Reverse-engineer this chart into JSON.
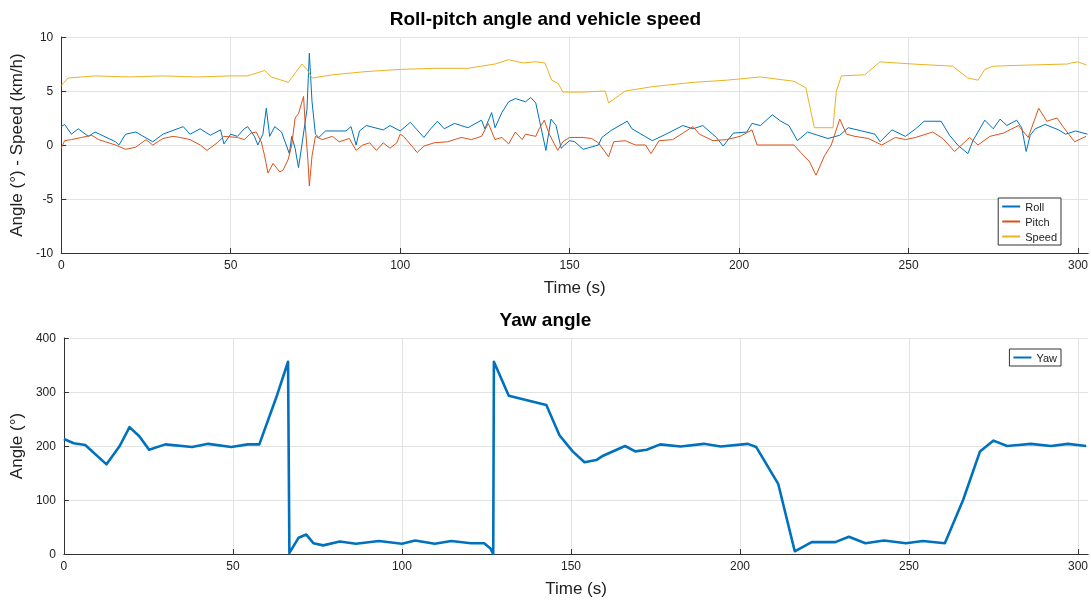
{
  "chart_data": [
    {
      "type": "line",
      "title": "Roll-pitch angle and vehicle speed",
      "xlabel": "Time (s)",
      "ylabel": "Angle (°) - Speed (km/h)",
      "xlim": [
        0,
        303
      ],
      "xticks": [
        0,
        50,
        100,
        150,
        200,
        250,
        300
      ],
      "ylim": [
        -10,
        10
      ],
      "yticks": [
        -10,
        -5,
        0,
        5,
        10
      ],
      "grid": true,
      "legend": "bottom right",
      "marker": "none",
      "series": [
        {
          "name": "Roll",
          "color": "#0072bd",
          "x": [
            0,
            1,
            3,
            5,
            8,
            10,
            16,
            17,
            19,
            22,
            27,
            30,
            36,
            38,
            41,
            44,
            47,
            48,
            50,
            52,
            54,
            55,
            57,
            58,
            59.5,
            60.5,
            61.5,
            63,
            65,
            67.3,
            68,
            69,
            70,
            71,
            72.5,
            73.2,
            74,
            75,
            76,
            78,
            84,
            85.5,
            87,
            88,
            90,
            95,
            97,
            100,
            103,
            105,
            107,
            109,
            111,
            113,
            116,
            120,
            124,
            125,
            127,
            128,
            130,
            132,
            134,
            137,
            138.5,
            140,
            141.5,
            143,
            144.5,
            146,
            147.5,
            148.5,
            150,
            151.5,
            154,
            158.5,
            159.5,
            162.5,
            167,
            168.4,
            174.4,
            178.4,
            183.4,
            186.4,
            189.3,
            193.3,
            195.3,
            198.3,
            202.3,
            203.8,
            206.3,
            209.8,
            212.3,
            214.7,
            217.2,
            220.2,
            223.2,
            226.2,
            229.7,
            232.2,
            236.2,
            240.1,
            241.6,
            245.1,
            249.1,
            252.1,
            254.6,
            259.6,
            262.1,
            264.5,
            267.5,
            269,
            272.5,
            275,
            277,
            279,
            281.9,
            283.4,
            284.7,
            285.9,
            287.4,
            290.3,
            294.3,
            296.3,
            299.3,
            302.8
          ],
          "values": [
            1.7,
            1.9,
            1.0,
            1.5,
            0.8,
            1.2,
            0.3,
            0,
            1.0,
            1.2,
            0.3,
            1.0,
            1.7,
            1.0,
            1.5,
            0.9,
            1.4,
            0.1,
            1.0,
            0.8,
            1.5,
            1.7,
            0.8,
            0,
            1.0,
            3.4,
            0.8,
            1.7,
            1.2,
            -0.8,
            0.8,
            -0.3,
            -2.1,
            0,
            3.3,
            8.5,
            4,
            1.0,
            0.7,
            1.3,
            1.3,
            1.7,
            0,
            1.3,
            1.8,
            1.4,
            1.8,
            1.3,
            2.1,
            1.4,
            0.7,
            1.5,
            2.2,
            1.5,
            2,
            1.6,
            2.3,
            1.5,
            3.0,
            1.6,
            3.0,
            4.0,
            4.3,
            4.0,
            4.4,
            3.9,
            1.7,
            -0.5,
            2.4,
            1.8,
            -0.3,
            0,
            0.4,
            0.3,
            -0.4,
            0,
            0.7,
            1.4,
            2.2,
            1.5,
            0.4,
            1.0,
            1.8,
            1.5,
            1.8,
            0.7,
            -0.1,
            1.1,
            1.2,
            2.0,
            1.8,
            2.8,
            2.2,
            1.8,
            0.4,
            1.2,
            0.9,
            0.6,
            0.9,
            1.6,
            1.3,
            1.0,
            0.3,
            1.4,
            0.8,
            1.5,
            2.2,
            2.2,
            0.9,
            0,
            -0.8,
            0.4,
            2.3,
            1.5,
            2.4,
            1.8,
            2.3,
            1.6,
            -0.6,
            0.9,
            1.5,
            1.9,
            1.4,
            1.0,
            1.3,
            1.0
          ]
        },
        {
          "name": "Pitch",
          "color": "#d95319",
          "x": [
            0,
            1,
            3,
            6,
            9,
            11,
            13,
            16,
            19,
            22,
            25,
            27,
            30,
            33,
            35,
            38,
            41,
            43,
            46,
            48,
            52,
            54,
            56,
            57.5,
            59,
            60,
            61,
            62.5,
            64.5,
            65.5,
            67,
            68,
            69,
            70,
            71.5,
            72,
            72.8,
            73.2,
            74,
            75,
            77,
            80,
            82,
            85,
            87,
            89,
            91,
            93,
            95,
            97,
            99,
            100,
            101,
            104,
            105,
            107,
            110,
            114,
            118,
            121,
            124,
            126,
            128,
            130,
            132,
            134,
            136,
            137,
            140,
            141,
            142.5,
            144,
            146.5,
            148,
            150,
            154,
            156.5,
            158.5,
            161.5,
            163,
            166.4,
            169.4,
            172.4,
            174,
            176.4,
            180.4,
            183.4,
            186.4,
            188.3,
            192.3,
            196.3,
            200.3,
            203.8,
            205.3,
            210.3,
            216.2,
            218.2,
            220.7,
            222.7,
            225.2,
            227.2,
            229.7,
            231.7,
            234.2,
            238.2,
            242.1,
            246.1,
            249.1,
            252.1,
            257.1,
            260.1,
            263.6,
            268,
            270.5,
            274,
            278,
            282.4,
            285.3,
            288.4,
            290.8,
            293.8,
            295.8,
            299,
            302.4
          ],
          "values": [
            -0.3,
            0.4,
            0.5,
            0.7,
            0.9,
            0.5,
            0.3,
            0,
            -0.4,
            -0.2,
            0.5,
            0,
            0.6,
            0.8,
            0.7,
            0.5,
            0,
            -0.5,
            0.2,
            0.8,
            0.7,
            0.5,
            1.1,
            1.2,
            0.3,
            -1,
            -2.6,
            -1.7,
            -2.5,
            -2.3,
            -1.3,
            0,
            2.5,
            2.9,
            4.5,
            1.8,
            -1.5,
            -3.8,
            -1,
            0.8,
            0.5,
            0.8,
            0.3,
            0.6,
            -0.5,
            0,
            0.2,
            -0.5,
            0.2,
            -0.3,
            0.2,
            1.0,
            0.8,
            -0.3,
            -0.7,
            -0.1,
            0.2,
            0.3,
            0.7,
            0.5,
            0.8,
            2.0,
            0.5,
            0.7,
            0.1,
            1.2,
            0.5,
            1.0,
            0.8,
            1.5,
            2.3,
            1.0,
            -0.5,
            0.3,
            0.7,
            0.7,
            0.6,
            0.2,
            -1.1,
            0.3,
            0.4,
            0,
            0,
            -0.8,
            0.4,
            0.5,
            1.1,
            1.7,
            1.0,
            0.4,
            0.5,
            0.8,
            1.4,
            0,
            0,
            0,
            -0.7,
            -1.5,
            -2.8,
            -1.0,
            0,
            2.4,
            1.0,
            0.8,
            0.6,
            0,
            0.7,
            0.5,
            0.7,
            1.2,
            0.6,
            -0.6,
            0.7,
            0,
            0.8,
            1.1,
            1.8,
            0.7,
            3.4,
            2.2,
            2.5,
            1.6,
            0.3,
            0.8
          ]
        },
        {
          "name": "Speed",
          "color": "#edb120",
          "x": [
            0,
            2,
            10,
            20,
            30,
            40,
            50,
            55,
            60,
            62,
            67,
            71,
            72.5,
            74,
            80,
            90,
            100,
            110,
            120,
            128,
            132,
            136,
            140,
            142.7,
            144.7,
            146.6,
            148,
            153.5,
            160.5,
            161.5,
            166.4,
            174.4,
            186.4,
            196.3,
            206.3,
            216.2,
            219.7,
            222.2,
            227.7,
            228.7,
            230.2,
            237.1,
            241.6,
            251.1,
            263,
            267.5,
            270.5,
            272.5,
            275,
            285,
            297,
            298,
            300,
            302.5
          ],
          "values": [
            5.5,
            6.2,
            6.4,
            6.3,
            6.4,
            6.3,
            6.4,
            6.4,
            6.9,
            6.3,
            5.8,
            7.5,
            7.0,
            6.2,
            6.5,
            6.8,
            7.0,
            7.1,
            7.1,
            7.5,
            7.9,
            7.6,
            7.7,
            7.6,
            6.0,
            5.7,
            4.9,
            4.9,
            5.0,
            3.9,
            5.0,
            5.4,
            5.8,
            6.0,
            6.3,
            5.9,
            5.3,
            1.6,
            1.6,
            5.0,
            6.4,
            6.5,
            7.7,
            7.5,
            7.3,
            6.2,
            6.0,
            7.0,
            7.3,
            7.4,
            7.5,
            7.6,
            7.7,
            7.4
          ]
        }
      ]
    },
    {
      "type": "line",
      "title": "Yaw angle",
      "xlabel": "Time (s)",
      "ylabel": "Angle (°)",
      "xlim": [
        0,
        303
      ],
      "xticks": [
        0,
        50,
        100,
        150,
        200,
        250,
        300
      ],
      "ylim": [
        0,
        400
      ],
      "yticks": [
        0,
        100,
        200,
        300,
        400
      ],
      "grid": true,
      "legend": "top right",
      "marker": "none",
      "series": [
        {
          "name": "Yaw",
          "color": "#0072bd",
          "x": [
            0,
            2.9,
            6.3,
            12.6,
            16.5,
            19.4,
            22.3,
            25.2,
            30,
            37.9,
            42.7,
            49.5,
            54.4,
            57.8,
            63.1,
            66.3,
            66.7,
            69.4,
            71.7,
            73.8,
            76.7,
            81.6,
            86.4,
            93.2,
            100,
            103.9,
            109.7,
            114.6,
            120.4,
            124.3,
            126.2,
            127,
            127.2,
            131.6,
            142.7,
            146.6,
            150.5,
            154,
            157.5,
            159.5,
            166,
            169,
            172.4,
            176.4,
            182.4,
            189.3,
            194.3,
            202.3,
            204.8,
            211.3,
            216.2,
            221.2,
            228.2,
            232.2,
            237.1,
            242.6,
            249.1,
            254.1,
            260.6,
            266,
            271,
            275,
            279,
            286,
            292,
            297,
            302.4
          ],
          "values": [
            213,
            205,
            202,
            166,
            200,
            235,
            218,
            193,
            203,
            198,
            204,
            198,
            203,
            203,
            295,
            356,
            2,
            30,
            36,
            20,
            16,
            23,
            19,
            24,
            19,
            25,
            19,
            24,
            20,
            20,
            10,
            0,
            356,
            293,
            276,
            220,
            190,
            170,
            174,
            182,
            200,
            190,
            193,
            203,
            199,
            204,
            199,
            204,
            198,
            130,
            5,
            22,
            22,
            32,
            20,
            25,
            20,
            24,
            20,
            100,
            190,
            210,
            200,
            204,
            200,
            204,
            200
          ]
        }
      ]
    }
  ]
}
